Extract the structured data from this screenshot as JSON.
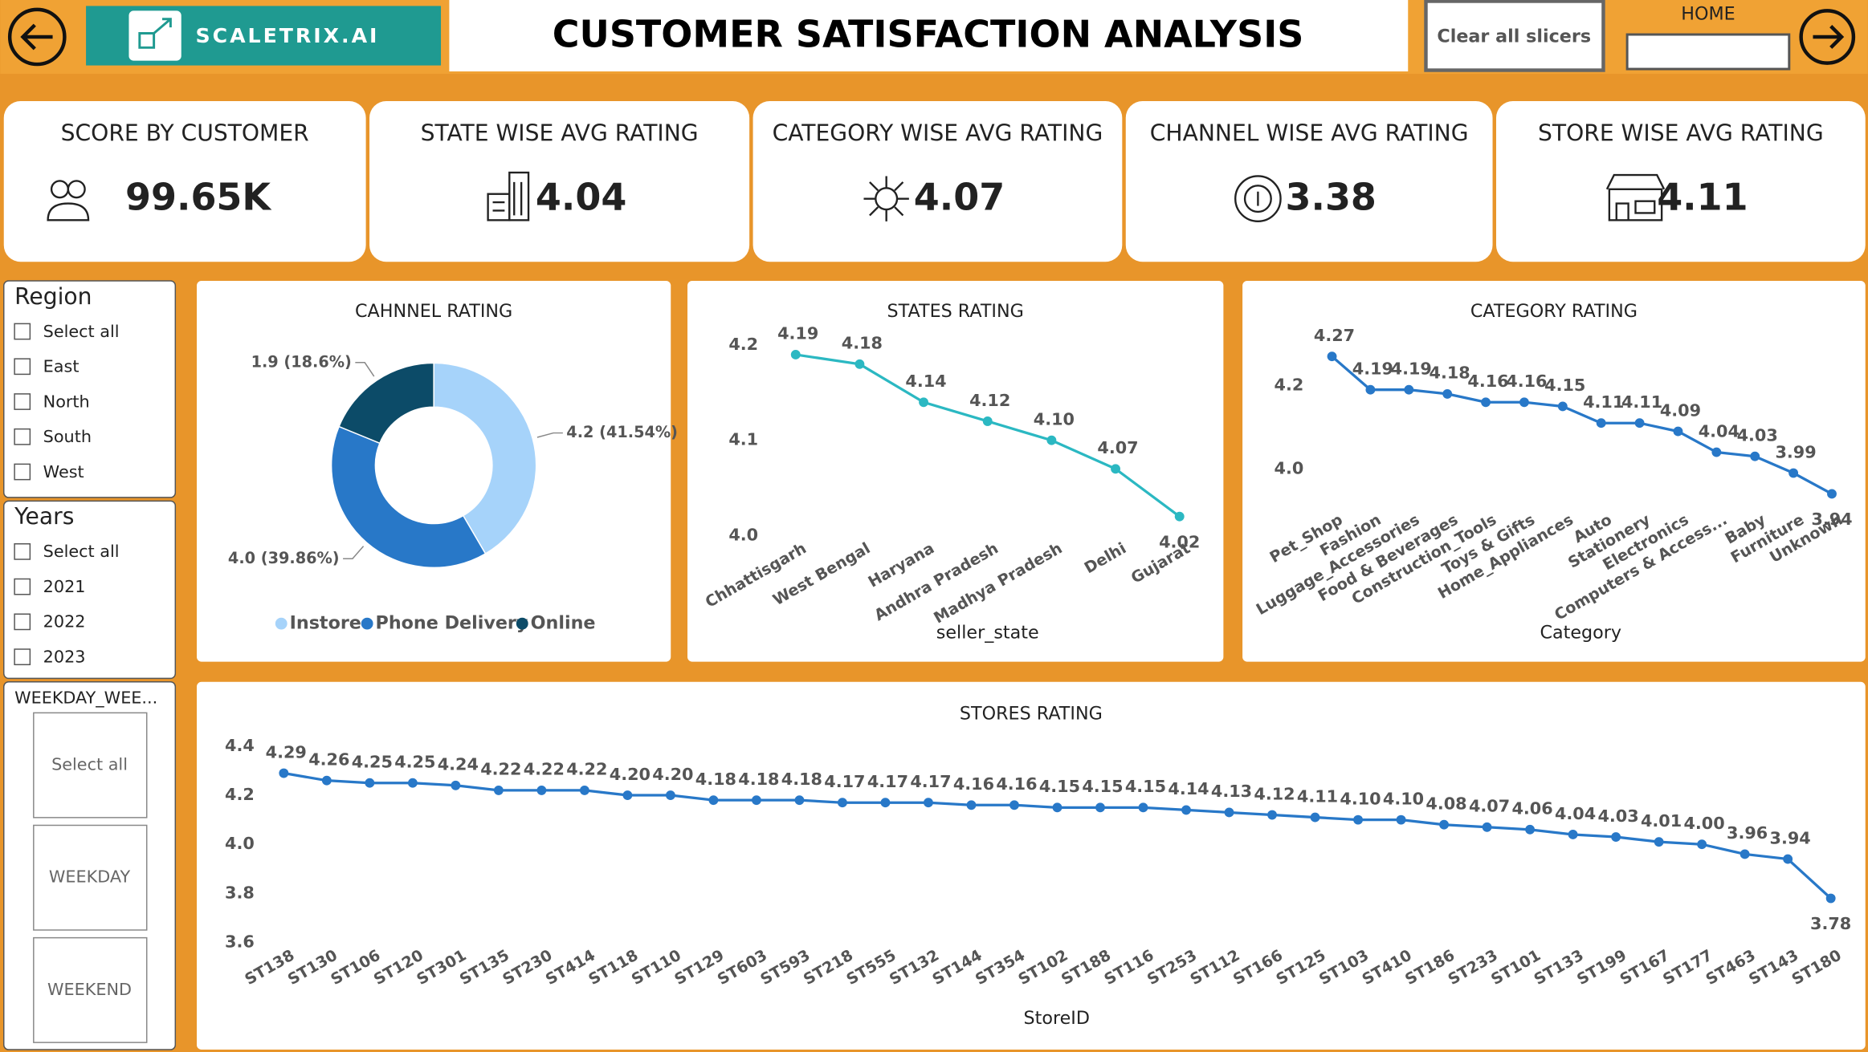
{
  "header": {
    "logo_text": "SCALETRIX.AI",
    "title": "CUSTOMER SATISFACTION ANALYSIS",
    "clear_button": "Clear all slicers",
    "home_label": "HOME"
  },
  "kpis": [
    {
      "label": "SCORE BY CUSTOMER",
      "value": "99.65K"
    },
    {
      "label": "STATE WISE AVG RATING",
      "value": "4.04"
    },
    {
      "label": "CATEGORY WISE AVG RATING",
      "value": "4.07"
    },
    {
      "label": "CHANNEL WISE AVG RATING",
      "value": "3.38"
    },
    {
      "label": "STORE WISE AVG RATING",
      "value": "4.11"
    }
  ],
  "slicers": [
    {
      "title": "Region",
      "options": [
        "Select all",
        "East",
        "North",
        "South",
        "West"
      ]
    },
    {
      "title": "Years",
      "options": [
        "Select all",
        "2021",
        "2022",
        "2023"
      ]
    },
    {
      "title": "WEEKDAY_WEE...",
      "options": [
        "Select all",
        "WEEKDAY",
        "WEEKEND"
      ]
    }
  ],
  "chart_data": [
    {
      "type": "donut",
      "title": "CAHNNEL RATING",
      "categories": [
        "Instore",
        "Phone Delivery",
        "Online"
      ],
      "values": [
        4.2,
        4.0,
        1.9
      ],
      "value_labels": [
        "4.2 (41.54%)",
        "4.0 (39.86%)",
        "1.9 (18.6%)"
      ],
      "colors": [
        "#a6d3fa",
        "#2878c8",
        "#0c4b68"
      ],
      "legend": "bottom"
    },
    {
      "type": "line",
      "title": "STATES RATING",
      "xlabel": "seller_state",
      "color": "#2bb8c2",
      "categories": [
        "Chhattisgarh",
        "West Bengal",
        "Haryana",
        "Andhra Pradesh",
        "Madhya Pradesh",
        "Delhi",
        "Gujarat"
      ],
      "values": [
        4.19,
        4.18,
        4.14,
        4.12,
        4.1,
        4.07,
        4.02
      ],
      "value_labels": [
        "4.19",
        "4.18",
        "4.14",
        "4.12",
        "4.10",
        "4.07",
        "4.02"
      ],
      "ylim": [
        4.0,
        4.21
      ],
      "yticks": [
        {
          "value": 4.0,
          "label": "4.0"
        },
        4.1,
        4.2
      ]
    },
    {
      "type": "line",
      "title": "CATEGORY RATING",
      "xlabel": "Category",
      "color": "#2878c8",
      "categories": [
        "Pet_Shop",
        "Fashion",
        "Luggage_Accessories",
        "Food & Beverages",
        "Construction_Tools",
        "Toys & Gifts",
        "Home_Appliances",
        "Auto",
        "Stationery",
        "Electronics",
        "Computers & Access...",
        "Baby",
        "Furniture",
        "Unknown"
      ],
      "values": [
        4.27,
        4.19,
        4.19,
        4.18,
        4.16,
        4.16,
        4.15,
        4.11,
        4.11,
        4.09,
        4.04,
        4.03,
        3.99,
        3.94
      ],
      "value_labels": [
        "4.27",
        "4.19",
        "4.19",
        "4.18",
        "4.16",
        "4.16",
        "4.15",
        "4.11",
        "4.11",
        "4.09",
        "4.04",
        "4.03",
        "3.99",
        "3.94"
      ],
      "ylim": [
        3.9,
        4.3
      ],
      "yticks": [
        {
          "value": 4.0,
          "label": "4.0"
        },
        4.2
      ]
    },
    {
      "type": "line",
      "title": "STORES RATING",
      "xlabel": "StoreID",
      "color": "#2878c8",
      "categories": [
        "ST138",
        "ST130",
        "ST106",
        "ST120",
        "ST301",
        "ST135",
        "ST230",
        "ST414",
        "ST118",
        "ST110",
        "ST129",
        "ST603",
        "ST593",
        "ST218",
        "ST555",
        "ST132",
        "ST144",
        "ST354",
        "ST102",
        "ST188",
        "ST116",
        "ST253",
        "ST112",
        "ST166",
        "ST125",
        "ST103",
        "ST410",
        "ST186",
        "ST233",
        "ST101",
        "ST133",
        "ST199",
        "ST167",
        "ST177",
        "ST463",
        "ST143",
        "ST180"
      ],
      "values": [
        4.29,
        4.26,
        4.25,
        4.25,
        4.24,
        4.22,
        4.22,
        4.22,
        4.2,
        4.2,
        4.18,
        4.18,
        4.18,
        4.17,
        4.17,
        4.17,
        4.16,
        4.16,
        4.15,
        4.15,
        4.15,
        4.14,
        4.13,
        4.12,
        4.11,
        4.1,
        4.1,
        4.08,
        4.07,
        4.06,
        4.04,
        4.03,
        4.01,
        4.0,
        3.96,
        3.94,
        3.78
      ],
      "value_labels": [
        "4.29",
        "4.26",
        "4.25",
        "4.25",
        "4.24",
        "4.22",
        "4.22",
        "4.22",
        "4.20",
        "4.20",
        "4.18",
        "4.18",
        "4.18",
        "4.17",
        "4.17",
        "4.17",
        "4.16",
        "4.16",
        "4.15",
        "4.15",
        "4.15",
        "4.14",
        "4.13",
        "4.12",
        "4.11",
        "4.10",
        "4.10",
        "4.08",
        "4.07",
        "4.06",
        "4.04",
        "4.03",
        "4.01",
        "4.00",
        "3.96",
        "3.94",
        "3.78"
      ],
      "ylim": [
        3.6,
        4.4
      ],
      "yticks": [
        {
          "value": 3.6,
          "label": "3.6"
        },
        {
          "value": 3.8,
          "label": "3.8"
        },
        {
          "value": 4.0,
          "label": "4.0"
        },
        {
          "value": 4.2,
          "label": "4.2"
        },
        {
          "value": 4.4,
          "label": "4.4"
        }
      ]
    }
  ]
}
